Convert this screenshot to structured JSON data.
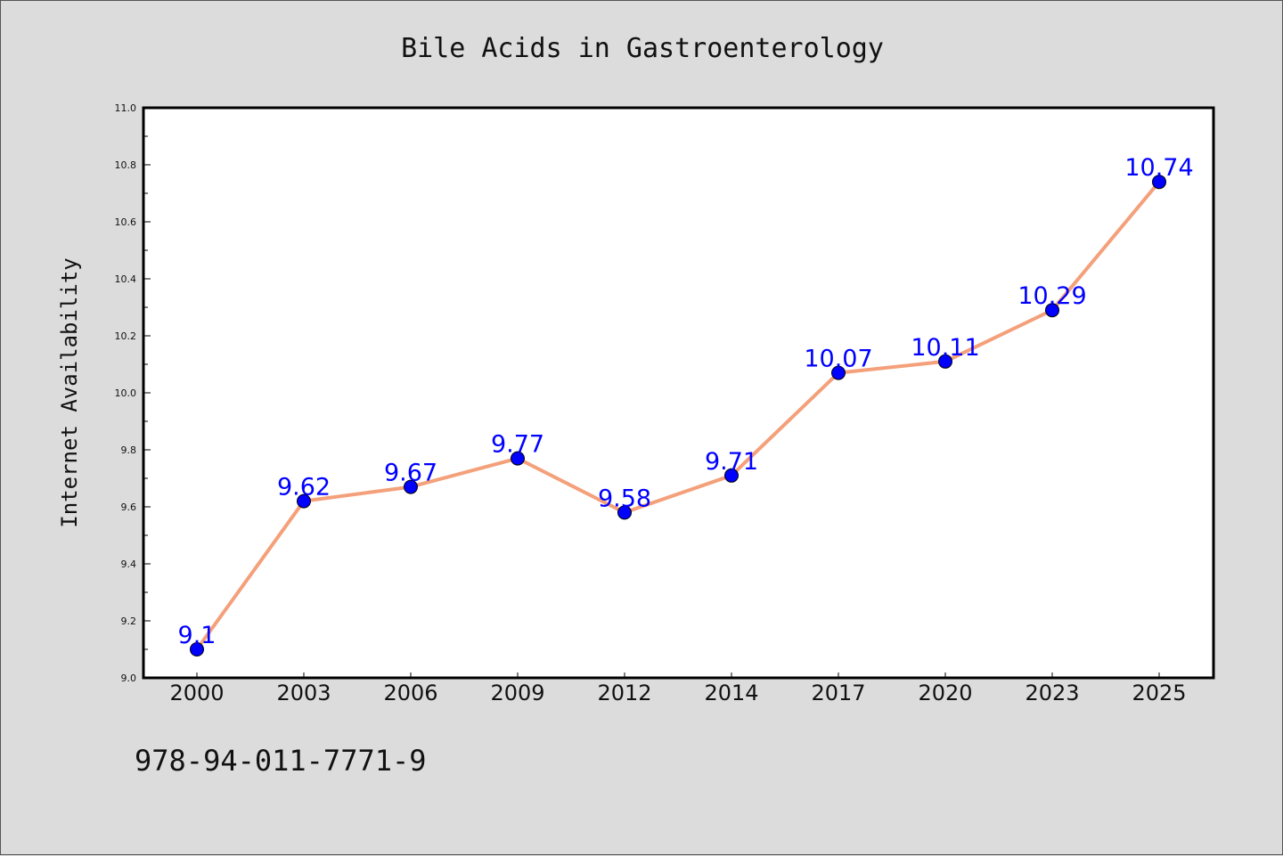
{
  "chart_data": {
    "type": "line",
    "title": "Bile Acids in Gastroenterology",
    "xlabel": "",
    "ylabel": "Internet Availability",
    "categories": [
      "2000",
      "2003",
      "2006",
      "2009",
      "2012",
      "2014",
      "2017",
      "2020",
      "2023",
      "2025"
    ],
    "series": [
      {
        "values": [
          9.1,
          9.62,
          9.67,
          9.77,
          9.58,
          9.71,
          10.07,
          10.11,
          10.29,
          10.74
        ],
        "labels": [
          "9.1",
          "9.62",
          "9.67",
          "9.77",
          "9.58",
          "9.71",
          "10.07",
          "10.11",
          "10.29",
          "10.74"
        ],
        "line_color": "#f4a07a",
        "marker_color": "#0000ff"
      }
    ],
    "ylim": [
      9.0,
      11.0
    ],
    "yticks": [
      "9.0",
      "9.2",
      "9.4",
      "9.6",
      "9.8",
      "10.0",
      "10.2",
      "10.4",
      "10.6",
      "10.8",
      "11.0"
    ],
    "grid": false,
    "legend": "none"
  },
  "footnote": "978-94-011-7771-9",
  "colors": {
    "background": "#dcdcdc",
    "plot_background": "#ffffff",
    "label_color": "#0000ff"
  }
}
